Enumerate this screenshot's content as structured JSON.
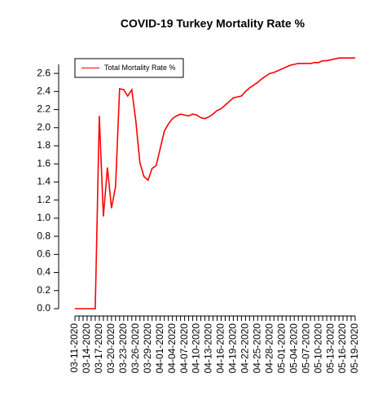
{
  "chart_data": {
    "type": "line",
    "title": "COVID-19 Turkey Mortality Rate %",
    "categories": [
      "03-11-2020",
      null,
      null,
      "03-14-2020",
      null,
      null,
      "03-17-2020",
      null,
      null,
      "03-20-2020",
      null,
      null,
      "03-23-2020",
      null,
      null,
      "03-26-2020",
      null,
      null,
      "03-29-2020",
      null,
      null,
      "04-01-2020",
      null,
      null,
      "04-04-2020",
      null,
      null,
      "04-07-2020",
      null,
      null,
      "04-10-2020",
      null,
      null,
      "04-13-2020",
      null,
      null,
      "04-16-2020",
      null,
      null,
      "04-19-2020",
      null,
      null,
      "04-22-2020",
      null,
      null,
      "04-25-2020",
      null,
      null,
      "04-28-2020",
      null,
      null,
      "05-01-2020",
      null,
      null,
      "05-04-2020",
      null,
      null,
      "05-07-2020",
      null,
      null,
      "05-10-2020",
      null,
      null,
      "05-13-2020",
      null,
      null,
      "05-16-2020",
      null,
      null,
      "05-19-2020"
    ],
    "series": [
      {
        "name": "Total Mortality Rate %",
        "color": "#ff0000",
        "values": [
          0,
          0,
          0,
          0,
          0,
          0,
          2.13,
          1.02,
          1.56,
          1.11,
          1.35,
          2.43,
          2.42,
          2.35,
          2.42,
          2.07,
          1.61,
          1.46,
          1.42,
          1.55,
          1.58,
          1.77,
          1.96,
          2.04,
          2.1,
          2.13,
          2.15,
          2.14,
          2.13,
          2.15,
          2.14,
          2.11,
          2.1,
          2.12,
          2.15,
          2.19,
          2.21,
          2.25,
          2.29,
          2.33,
          2.34,
          2.35,
          2.4,
          2.44,
          2.47,
          2.5,
          2.54,
          2.57,
          2.6,
          2.61,
          2.63,
          2.65,
          2.67,
          2.69,
          2.7,
          2.71,
          2.71,
          2.71,
          2.71,
          2.72,
          2.72,
          2.74,
          2.74,
          2.75,
          2.76,
          2.77,
          2.77,
          2.77,
          2.77,
          2.77
        ]
      }
    ],
    "ylim": [
      0,
      2.7
    ],
    "yticks": [
      {
        "value": 0,
        "label": "0.0"
      },
      0.2,
      0.4,
      0.6,
      0.8,
      {
        "value": 1,
        "label": "1.0"
      },
      1.2,
      1.4,
      1.6,
      1.8,
      {
        "value": 2,
        "label": "2.0"
      },
      2.2,
      2.4,
      2.6
    ],
    "legend": "top-left"
  }
}
